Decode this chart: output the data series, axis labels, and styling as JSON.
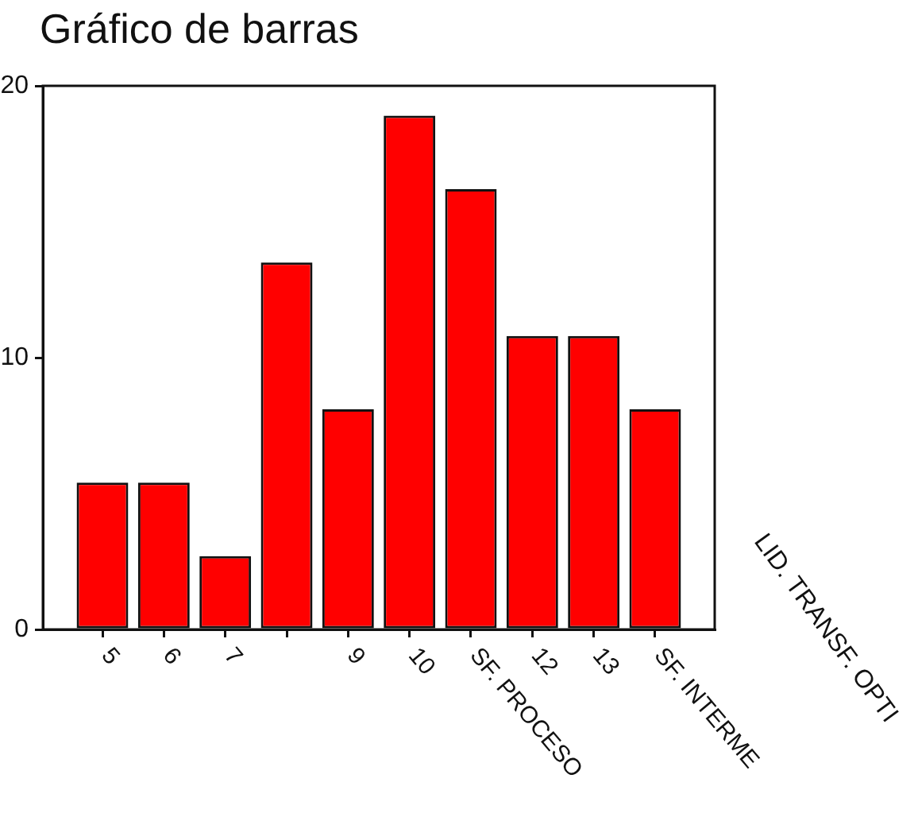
{
  "chart_data": {
    "type": "bar",
    "title": "Gráfico de barras",
    "categories": [
      "5",
      "6",
      "7",
      null,
      "9",
      "10",
      "SF. PROCESO",
      "12",
      "13",
      "SF. INTERME"
    ],
    "values": [
      5.4,
      5.4,
      2.7,
      13.5,
      8.1,
      18.9,
      16.2,
      10.8,
      10.8,
      8.1
    ],
    "color": "#ff0000",
    "ylim": [
      0,
      20
    ],
    "yticks": [
      0,
      10,
      20
    ],
    "annotations": [
      "LID. TRANSF. OPTI"
    ]
  }
}
